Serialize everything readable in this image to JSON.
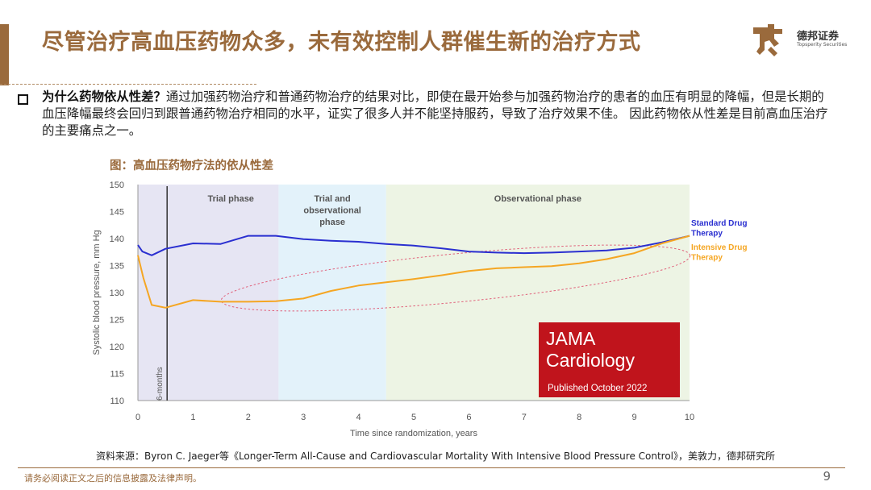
{
  "slide": {
    "title": "尽管治疗高血压药物众多，未有效控制人群催生新的治疗方式",
    "logo_name": "德邦证券",
    "logo_en": "Topsperity Securities",
    "bullet_lead": "为什么药物依从性差？",
    "bullet_body": "通过加强药物治疗和普通药物治疗的结果对比，即使在最开始参与加强药物治疗的患者的血压有明显的降幅，但是长期的血压降幅最终会回归到跟普通药物治疗相同的水平，证实了很多人并不能坚持服药，导致了治疗效果不佳。 因此药物依从性差是目前高血压治疗的主要痛点之一。",
    "figure_title": "图：高血压药物疗法的依从性差",
    "caption": "资料来源：Byron C. Jaeger等《Longer-Term All-Cause and Cardiovascular Mortality With Intensive Blood Pressure Control》，美敦力，德邦研究所",
    "footer_note": "请务必阅读正文之后的信息披露及法律声明。",
    "page_number": "9"
  },
  "chart_data": {
    "type": "line",
    "xlabel": "Time since randomization, years",
    "ylabel": "Systolic blood pressure, mm Hg",
    "xlim": [
      0,
      10
    ],
    "ylim": [
      110,
      150
    ],
    "x_ticks": [
      0,
      1,
      2,
      3,
      4,
      5,
      6,
      7,
      8,
      9,
      10
    ],
    "y_ticks": [
      110,
      115,
      120,
      125,
      130,
      135,
      140,
      145,
      150
    ],
    "phases": [
      {
        "label": "Trial phase",
        "start": 0,
        "end": 2.55,
        "color": "#e6e5f3"
      },
      {
        "label": "Trial and observational phase",
        "start": 2.55,
        "end": 4.5,
        "color": "#e3f2fa"
      },
      {
        "label": "Observational phase",
        "start": 4.5,
        "end": 10,
        "color": "#edf4e4"
      }
    ],
    "marker": {
      "x": 0.5,
      "label": "6-months"
    },
    "series": [
      {
        "name": "Standard Drug Therapy",
        "color": "#2a2fd0",
        "x": [
          0,
          0.08,
          0.25,
          0.5,
          1.0,
          1.5,
          2.0,
          2.5,
          3.0,
          3.5,
          4.0,
          4.5,
          5.0,
          5.5,
          6.0,
          6.5,
          7.0,
          7.5,
          8.0,
          8.5,
          9.0,
          9.5,
          10.0
        ],
        "values": [
          138.8,
          137.6,
          136.9,
          138.1,
          139.1,
          139.0,
          140.5,
          140.5,
          139.9,
          139.6,
          139.4,
          139.0,
          138.7,
          138.2,
          137.6,
          137.4,
          137.3,
          137.4,
          137.6,
          137.8,
          138.3,
          139.3,
          140.5
        ]
      },
      {
        "name": "Intensive Drug Therapy",
        "color": "#f5a623",
        "x": [
          0,
          0.1,
          0.25,
          0.5,
          1.0,
          1.5,
          2.0,
          2.5,
          3.0,
          3.5,
          4.0,
          4.5,
          5.0,
          5.5,
          6.0,
          6.5,
          7.0,
          7.5,
          8.0,
          8.5,
          9.0,
          9.5,
          10.0
        ],
        "values": [
          136.9,
          132.7,
          127.7,
          127.2,
          128.6,
          128.3,
          128.3,
          128.4,
          128.9,
          130.3,
          131.3,
          131.9,
          132.5,
          133.2,
          134.0,
          134.5,
          134.7,
          134.9,
          135.4,
          136.2,
          137.3,
          139.1,
          140.5
        ]
      }
    ],
    "badge": {
      "line1": "JAMA",
      "line2": "Cardiology",
      "line3": "Published October 2022"
    },
    "annotation": "dashed ellipse around converging lines"
  }
}
